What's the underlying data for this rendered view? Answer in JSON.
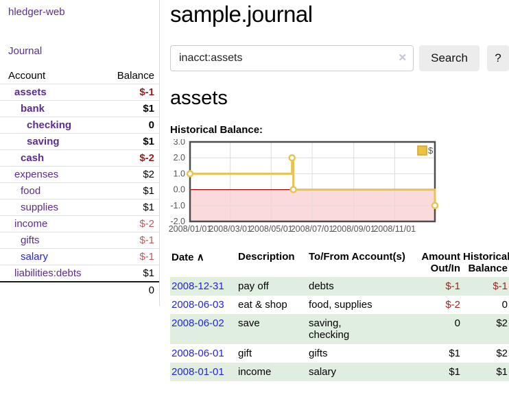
{
  "app": {
    "brand": "hledger-web"
  },
  "sidebar": {
    "journal_link": "Journal",
    "accounts_table": {
      "col_account": "Account",
      "col_balance": "Balance",
      "rows": [
        {
          "name": "assets",
          "depth": 0,
          "balance": "$-1",
          "bold": true,
          "negative": true,
          "link_color": "purple"
        },
        {
          "name": "bank",
          "depth": 1,
          "balance": "$1",
          "bold": true,
          "negative": false,
          "link_color": "purple"
        },
        {
          "name": "checking",
          "depth": 2,
          "balance": "0",
          "bold": true,
          "negative": false,
          "link_color": "purple"
        },
        {
          "name": "saving",
          "depth": 2,
          "balance": "$1",
          "bold": true,
          "negative": false,
          "link_color": "purple"
        },
        {
          "name": "cash",
          "depth": 1,
          "balance": "$-2",
          "bold": true,
          "negative": true,
          "link_color": "purple"
        },
        {
          "name": "expenses",
          "depth": 0,
          "balance": "$2",
          "bold": false,
          "negative": false,
          "link_color": "purple"
        },
        {
          "name": "food",
          "depth": 1,
          "balance": "$1",
          "bold": false,
          "negative": false,
          "link_color": "purple"
        },
        {
          "name": "supplies",
          "depth": 1,
          "balance": "$1",
          "bold": false,
          "negative": false,
          "link_color": "purple"
        },
        {
          "name": "income",
          "depth": 0,
          "balance": "$-2",
          "bold": false,
          "negative": true,
          "link_color": "purple"
        },
        {
          "name": "gifts",
          "depth": 1,
          "balance": "$-1",
          "bold": false,
          "negative": true,
          "link_color": "purple"
        },
        {
          "name": "salary",
          "depth": 1,
          "balance": "$-1",
          "bold": false,
          "negative": true,
          "link_color": "blue"
        },
        {
          "name": "liabilities:debts",
          "depth": 0,
          "balance": "$1",
          "bold": false,
          "negative": false,
          "link_color": "purple"
        }
      ],
      "total": "0"
    }
  },
  "header": {
    "title": "sample.journal"
  },
  "search": {
    "value": "inacct:assets",
    "clear_icon": "✕",
    "button_label": "Search",
    "help_label": "?"
  },
  "account_page": {
    "heading": "assets",
    "chart_label": "Historical Balance:"
  },
  "chart_data": {
    "type": "line",
    "style": "step-after",
    "title": "Historical Balance",
    "legend": [
      {
        "label": "$",
        "color": "#edc240"
      }
    ],
    "legend_position": "top-right",
    "grid": true,
    "x_min": "2008-01-01",
    "x_max": "2008-12-31",
    "y_min": -2.0,
    "y_max": 3.0,
    "y_ticks": [
      3.0,
      2.0,
      1.0,
      0.0,
      -1.0,
      -2.0
    ],
    "y_tick_labels": [
      "3.0",
      "2.0",
      "1.0",
      "0.0",
      "-1.0",
      "-2.0"
    ],
    "x_ticks": [
      "2008-01-01",
      "2008-03-01",
      "2008-05-01",
      "2008-07-01",
      "2008-09-01",
      "2008-11-01"
    ],
    "x_tick_labels": [
      "2008/01/01",
      "2008/03/01",
      "2008/05/01",
      "2008/07/01",
      "2008/09/01",
      "2008/11/01"
    ],
    "points": [
      [
        "2008-01-01",
        1
      ],
      [
        "2008-06-01",
        2
      ],
      [
        "2008-06-03",
        0
      ],
      [
        "2008-12-31",
        -1
      ]
    ],
    "colors": {
      "line": "#e9c351",
      "marker_fill": "#ffffff",
      "legend_box_fill": "#edc240",
      "legend_box_border": "#cfa32f",
      "negative_region": "#fadada",
      "zero_line": "#a00000",
      "gridline": "#dcdcdc",
      "border": "#4d4d4d",
      "tick_text": "#545454"
    }
  },
  "transactions_table": {
    "headers": {
      "date": "Date",
      "sort_icon": "∧",
      "description": "Description",
      "accounts": "To/From Account(s)",
      "amount": "Amount Out/In",
      "balance": "Historical Balance"
    },
    "rows": [
      {
        "date": "2008-12-31",
        "description": "pay off",
        "accounts": "debts",
        "amount": "$-1",
        "amount_negative": true,
        "balance": "$-1",
        "balance_negative": true
      },
      {
        "date": "2008-06-03",
        "description": "eat & shop",
        "accounts": "food, supplies",
        "amount": "$-2",
        "amount_negative": true,
        "balance": "0",
        "balance_negative": false
      },
      {
        "date": "2008-06-02",
        "description": "save",
        "accounts": "saving,\nchecking",
        "amount": "0",
        "amount_negative": false,
        "balance": "$2",
        "balance_negative": false
      },
      {
        "date": "2008-06-01",
        "description": "gift",
        "accounts": "gifts",
        "amount": "$1",
        "amount_negative": false,
        "balance": "$2",
        "balance_negative": false
      },
      {
        "date": "2008-01-01",
        "description": "income",
        "accounts": "salary",
        "amount": "$1",
        "amount_negative": false,
        "balance": "$1",
        "balance_negative": false
      }
    ]
  }
}
